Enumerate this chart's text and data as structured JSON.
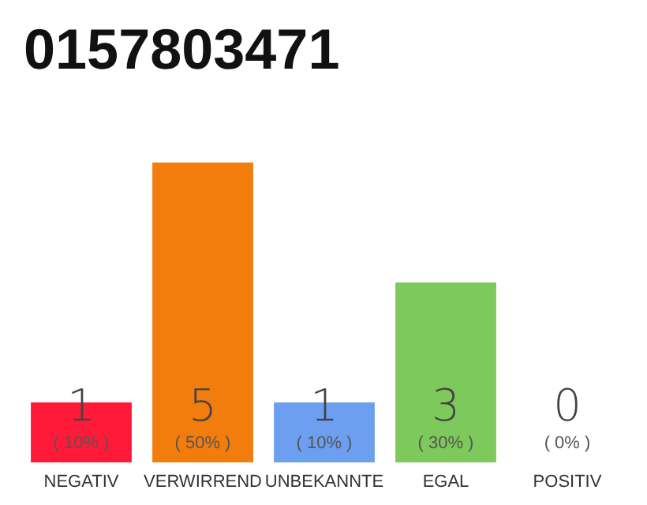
{
  "chart_data": {
    "type": "bar",
    "title": "0157803471",
    "categories": [
      "NEGATIV",
      "VERWIRREND",
      "UNBEKANNTE",
      "EGAL",
      "POSITIV"
    ],
    "values": [
      1,
      5,
      1,
      3,
      0
    ],
    "colors": [
      "#ff1a3a",
      "#f27d0c",
      "#6d9ff0",
      "#7ec95b",
      "#d9d9d9"
    ],
    "value_labels": [
      "1\n( 10% )",
      "5\n( 50% )",
      "1\n( 10% )",
      "3\n( 30% )",
      "0\n( 0% )"
    ]
  }
}
